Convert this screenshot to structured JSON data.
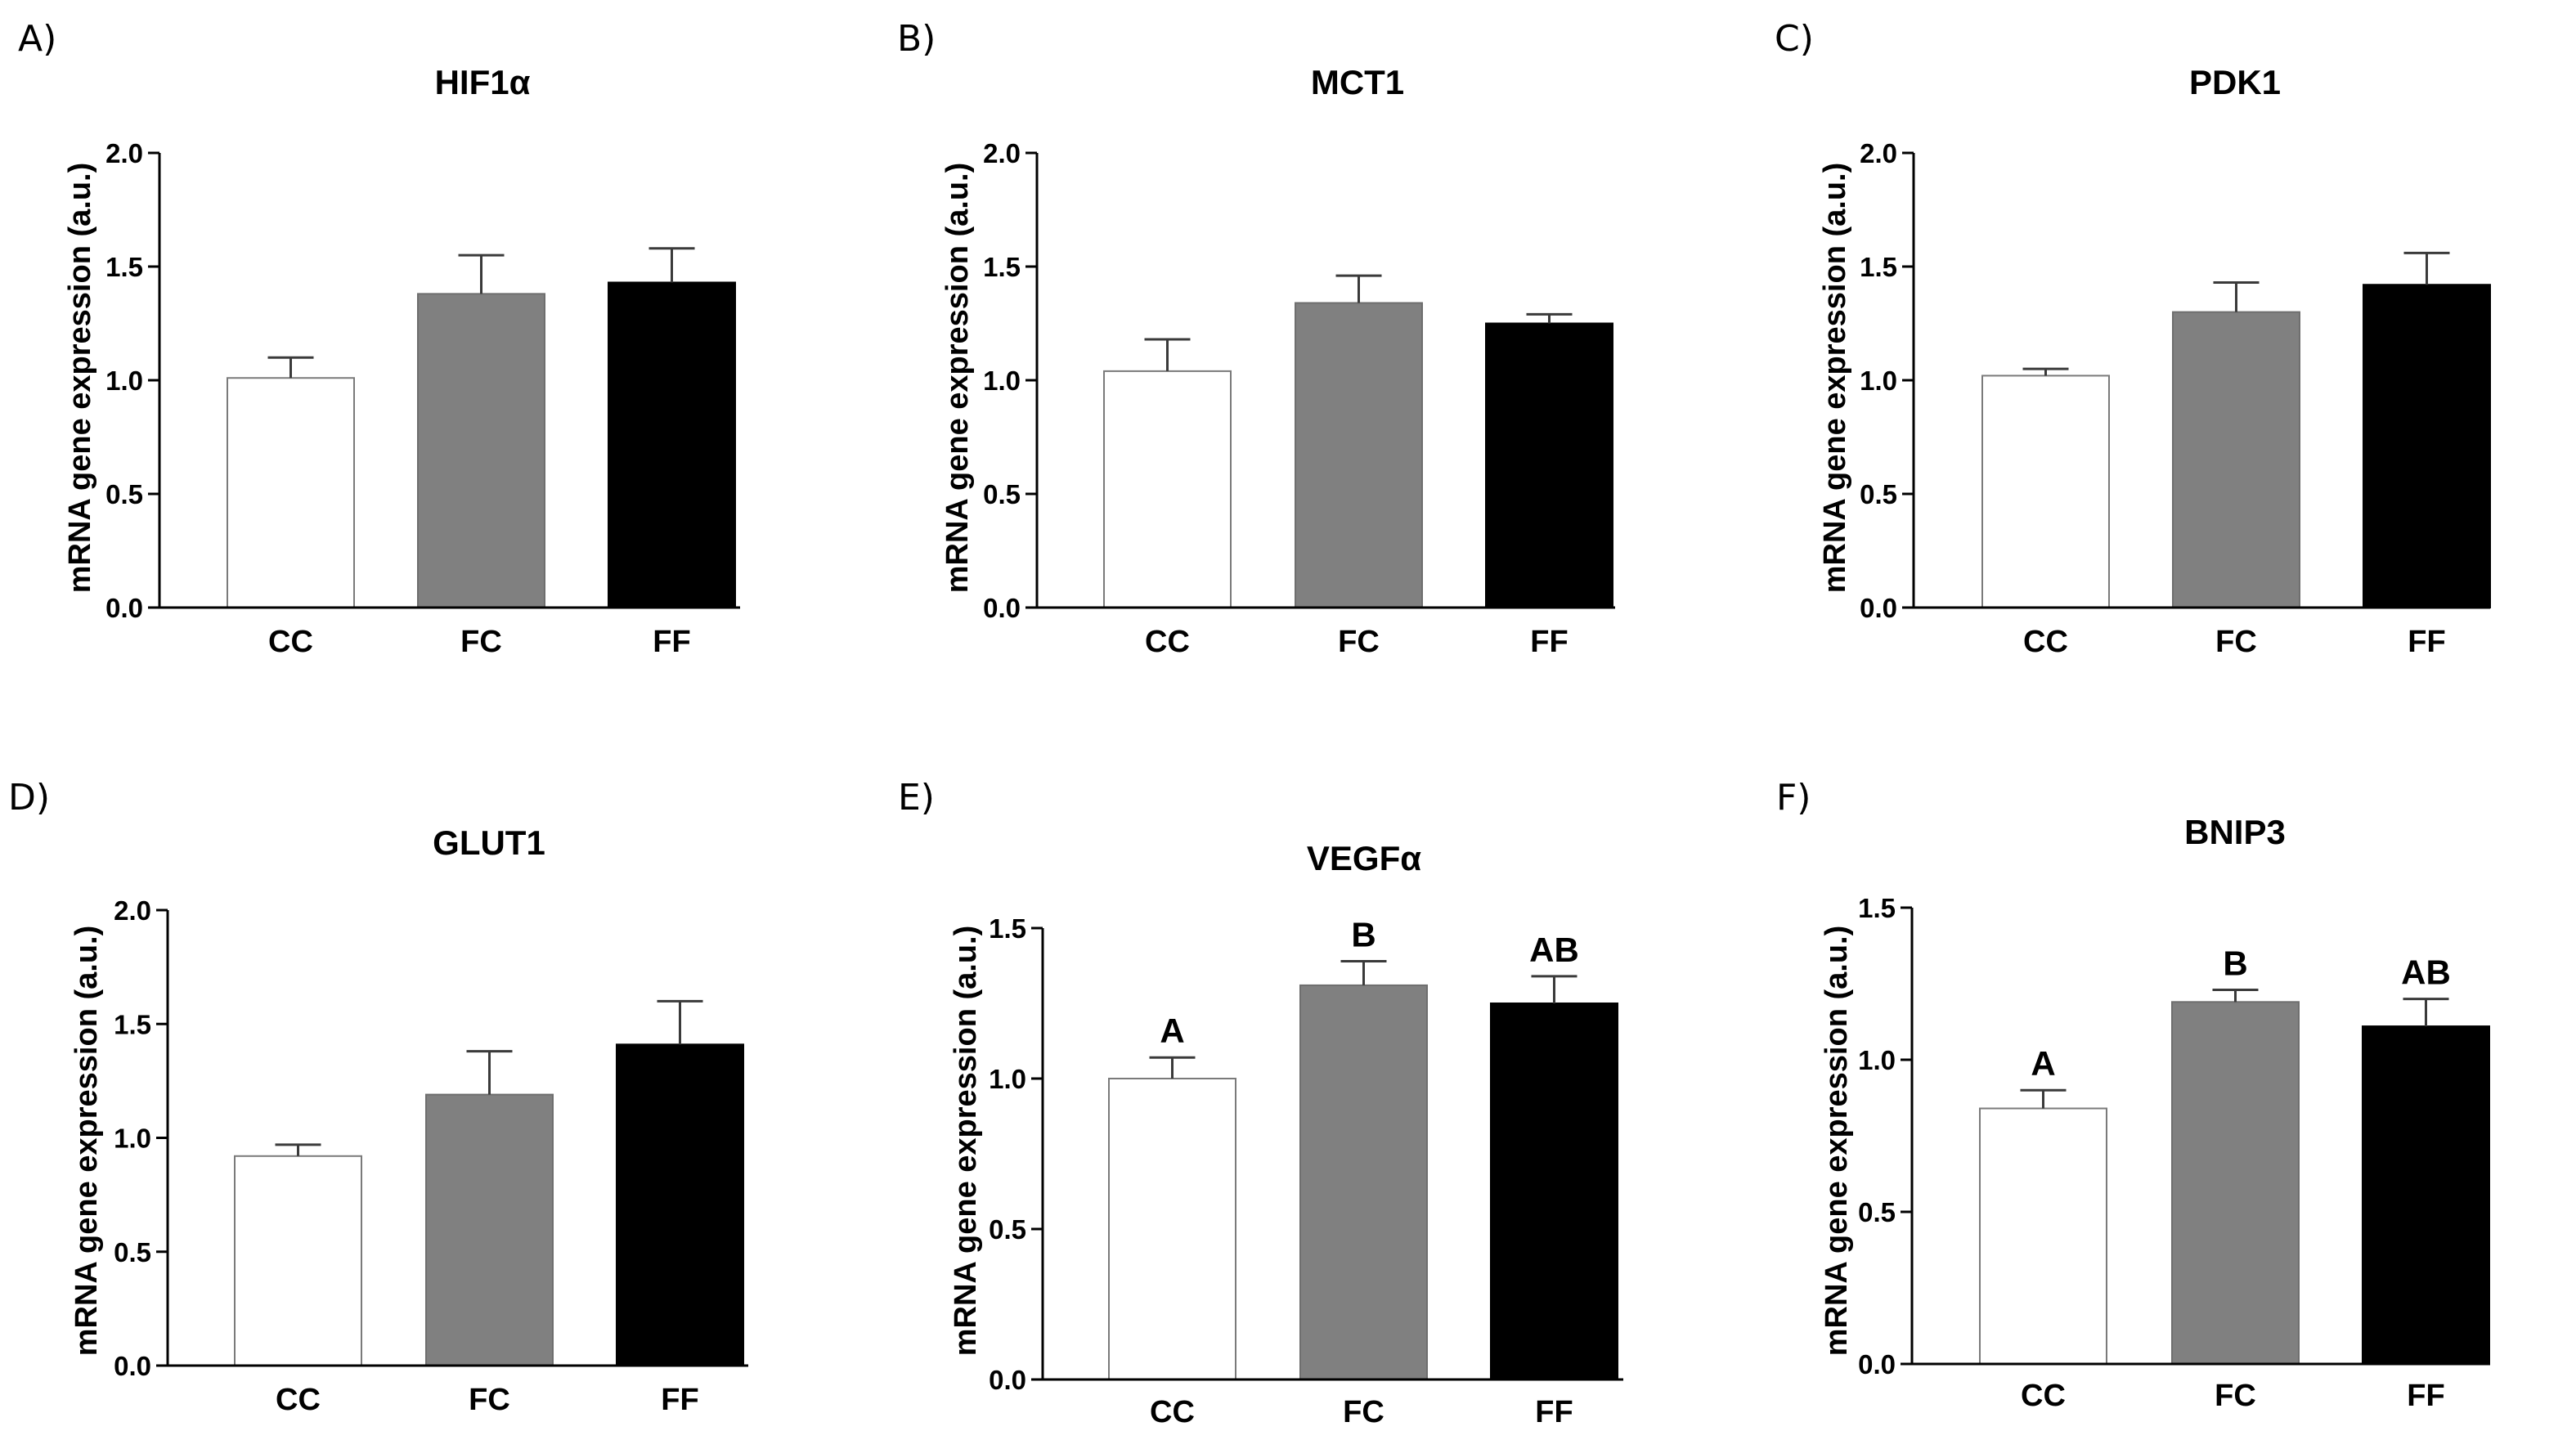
{
  "chart_data": [
    {
      "panel": "A)",
      "type": "bar",
      "title": "HIF1α",
      "ylabel": "mRNA gene expression (a.u.)",
      "xlabel": "",
      "ylim": [
        0,
        2.0
      ],
      "yticks": [
        "0.0",
        "0.5",
        "1.0",
        "1.5",
        "2.0"
      ],
      "categories": [
        "CC",
        "FC",
        "FF"
      ],
      "values": [
        1.01,
        1.38,
        1.43
      ],
      "errors": [
        0.09,
        0.17,
        0.15
      ],
      "colors": [
        "#ffffff",
        "#808080",
        "#000000"
      ],
      "annotations": []
    },
    {
      "panel": "B)",
      "type": "bar",
      "title": "MCT1",
      "ylabel": "mRNA gene expression (a.u.)",
      "xlabel": "",
      "ylim": [
        0,
        2.0
      ],
      "yticks": [
        "0.0",
        "0.5",
        "1.0",
        "1.5",
        "2.0"
      ],
      "categories": [
        "CC",
        "FC",
        "FF"
      ],
      "values": [
        1.04,
        1.34,
        1.25
      ],
      "errors": [
        0.14,
        0.12,
        0.04
      ],
      "colors": [
        "#ffffff",
        "#808080",
        "#000000"
      ],
      "annotations": []
    },
    {
      "panel": "C)",
      "type": "bar",
      "title": "PDK1",
      "ylabel": "mRNA gene expression (a.u.)",
      "xlabel": "",
      "ylim": [
        0,
        2.0
      ],
      "yticks": [
        "0.0",
        "0.5",
        "1.0",
        "1.5",
        "2.0"
      ],
      "categories": [
        "CC",
        "FC",
        "FF"
      ],
      "values": [
        1.02,
        1.3,
        1.42
      ],
      "errors": [
        0.03,
        0.13,
        0.14
      ],
      "colors": [
        "#ffffff",
        "#808080",
        "#000000"
      ],
      "annotations": []
    },
    {
      "panel": "D)",
      "type": "bar",
      "title": "GLUT1",
      "ylabel": "mRNA gene expression (a.u.)",
      "xlabel": "",
      "ylim": [
        0,
        2.0
      ],
      "yticks": [
        "0.0",
        "0.5",
        "1.0",
        "1.5",
        "2.0"
      ],
      "categories": [
        "CC",
        "FC",
        "FF"
      ],
      "values": [
        0.92,
        1.19,
        1.41
      ],
      "errors": [
        0.05,
        0.19,
        0.19
      ],
      "colors": [
        "#ffffff",
        "#808080",
        "#000000"
      ],
      "annotations": []
    },
    {
      "panel": "E)",
      "type": "bar",
      "title": "VEGFα",
      "ylabel": "mRNA gene expression (a.u.)",
      "xlabel": "",
      "ylim": [
        0,
        1.5
      ],
      "yticks": [
        "0.0",
        "0.5",
        "1.0",
        "1.5"
      ],
      "categories": [
        "CC",
        "FC",
        "FF"
      ],
      "values": [
        1.0,
        1.31,
        1.25
      ],
      "errors": [
        0.07,
        0.08,
        0.09
      ],
      "colors": [
        "#ffffff",
        "#808080",
        "#000000"
      ],
      "annotations": [
        "A",
        "B",
        "AB"
      ]
    },
    {
      "panel": "F)",
      "type": "bar",
      "title": "BNIP3",
      "ylabel": "mRNA gene expression (a.u.)",
      "xlabel": "",
      "ylim": [
        0,
        1.5
      ],
      "yticks": [
        "0.0",
        "0.5",
        "1.0",
        "1.5"
      ],
      "categories": [
        "CC",
        "FC",
        "FF"
      ],
      "values": [
        0.84,
        1.19,
        1.11
      ],
      "errors": [
        0.06,
        0.04,
        0.09
      ],
      "colors": [
        "#ffffff",
        "#808080",
        "#000000"
      ],
      "annotations": [
        "A",
        "B",
        "AB"
      ]
    }
  ]
}
